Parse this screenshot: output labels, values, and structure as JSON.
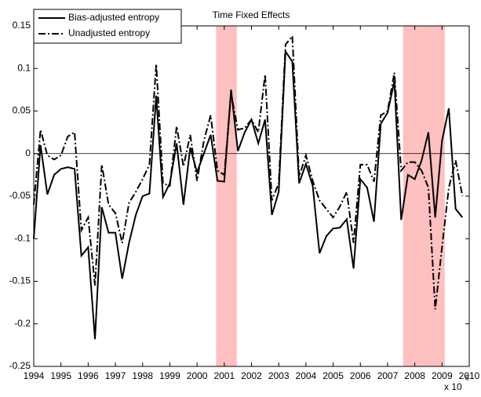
{
  "chart_data": {
    "type": "line",
    "title": "Time Fixed Effects",
    "x": [
      1994,
      1994.25,
      1994.5,
      1994.75,
      1995,
      1995.25,
      1995.5,
      1995.75,
      1996,
      1996.25,
      1996.5,
      1996.75,
      1997,
      1997.25,
      1997.5,
      1997.75,
      1998,
      1998.25,
      1998.5,
      1998.75,
      1999,
      1999.25,
      1999.5,
      1999.75,
      2000,
      2000.25,
      2000.5,
      2000.75,
      2001,
      2001.25,
      2001.5,
      2001.75,
      2002,
      2002.25,
      2002.5,
      2002.75,
      2003,
      2003.25,
      2003.5,
      2003.75,
      2004,
      2004.25,
      2004.5,
      2004.75,
      2005,
      2005.25,
      2005.5,
      2005.75,
      2006,
      2006.25,
      2006.5,
      2006.75,
      2007,
      2007.25,
      2007.5,
      2007.75,
      2008,
      2008.25,
      2008.5,
      2008.75,
      2009,
      2009.25,
      2009.5,
      2009.75
    ],
    "series": [
      {
        "name": "Bias-adjusted entropy",
        "color": "#000000",
        "style": "solid",
        "values": [
          -0.1,
          0.01,
          -0.048,
          -0.025,
          -0.018,
          -0.016,
          -0.018,
          -0.12,
          -0.11,
          -0.218,
          -0.063,
          -0.093,
          -0.093,
          -0.147,
          -0.105,
          -0.072,
          -0.05,
          -0.047,
          0.068,
          -0.051,
          -0.035,
          0.012,
          -0.06,
          0.007,
          -0.022,
          0.0,
          0.022,
          -0.032,
          -0.033,
          0.075,
          0.003,
          0.025,
          0.04,
          0.012,
          0.04,
          -0.072,
          -0.045,
          0.12,
          0.108,
          -0.035,
          -0.012,
          -0.038,
          -0.117,
          -0.097,
          -0.088,
          -0.087,
          -0.077,
          -0.135,
          -0.03,
          -0.04,
          -0.08,
          0.035,
          0.048,
          0.085,
          -0.078,
          -0.025,
          -0.03,
          -0.008,
          0.025,
          -0.075,
          0.015,
          0.053,
          -0.065,
          -0.075
        ]
      },
      {
        "name": "Unadjusted entropy",
        "color": "#000000",
        "style": "dashdot",
        "values": [
          -0.06,
          0.028,
          -0.002,
          -0.007,
          -0.002,
          0.02,
          0.025,
          -0.09,
          -0.075,
          -0.155,
          -0.013,
          -0.06,
          -0.07,
          -0.105,
          -0.058,
          -0.045,
          -0.03,
          -0.013,
          0.105,
          -0.035,
          -0.038,
          0.032,
          -0.015,
          0.022,
          -0.032,
          0.015,
          0.045,
          -0.02,
          -0.025,
          0.07,
          0.028,
          0.03,
          0.04,
          0.025,
          0.093,
          -0.055,
          -0.035,
          0.128,
          0.138,
          -0.027,
          -0.002,
          -0.032,
          -0.055,
          -0.065,
          -0.075,
          -0.062,
          -0.045,
          -0.105,
          -0.013,
          -0.013,
          -0.033,
          0.045,
          0.05,
          0.095,
          -0.02,
          -0.01,
          -0.01,
          -0.02,
          -0.04,
          -0.183,
          -0.11,
          -0.04,
          -0.008,
          -0.05
        ]
      }
    ],
    "shaded_regions": [
      [
        2000.7,
        2001.46
      ],
      [
        2007.57,
        2009.1
      ]
    ],
    "shade_color": "#ffc0c0",
    "hline": 0,
    "xlim": [
      1994,
      2010
    ],
    "xticks": [
      1994,
      1995,
      1996,
      1997,
      1998,
      1999,
      2000,
      2001,
      2002,
      2003,
      2004,
      2005,
      2006,
      2007,
      2008,
      2009,
      2010
    ],
    "ylim": [
      -0.25,
      0.15
    ],
    "yticks": [
      -0.25,
      -0.2,
      -0.15,
      -0.1,
      -0.05,
      0,
      0.05,
      0.1,
      0.15
    ],
    "axis_multiplier": "x 10",
    "axis_multiplier_exponent": "5",
    "legend": "upper left"
  }
}
